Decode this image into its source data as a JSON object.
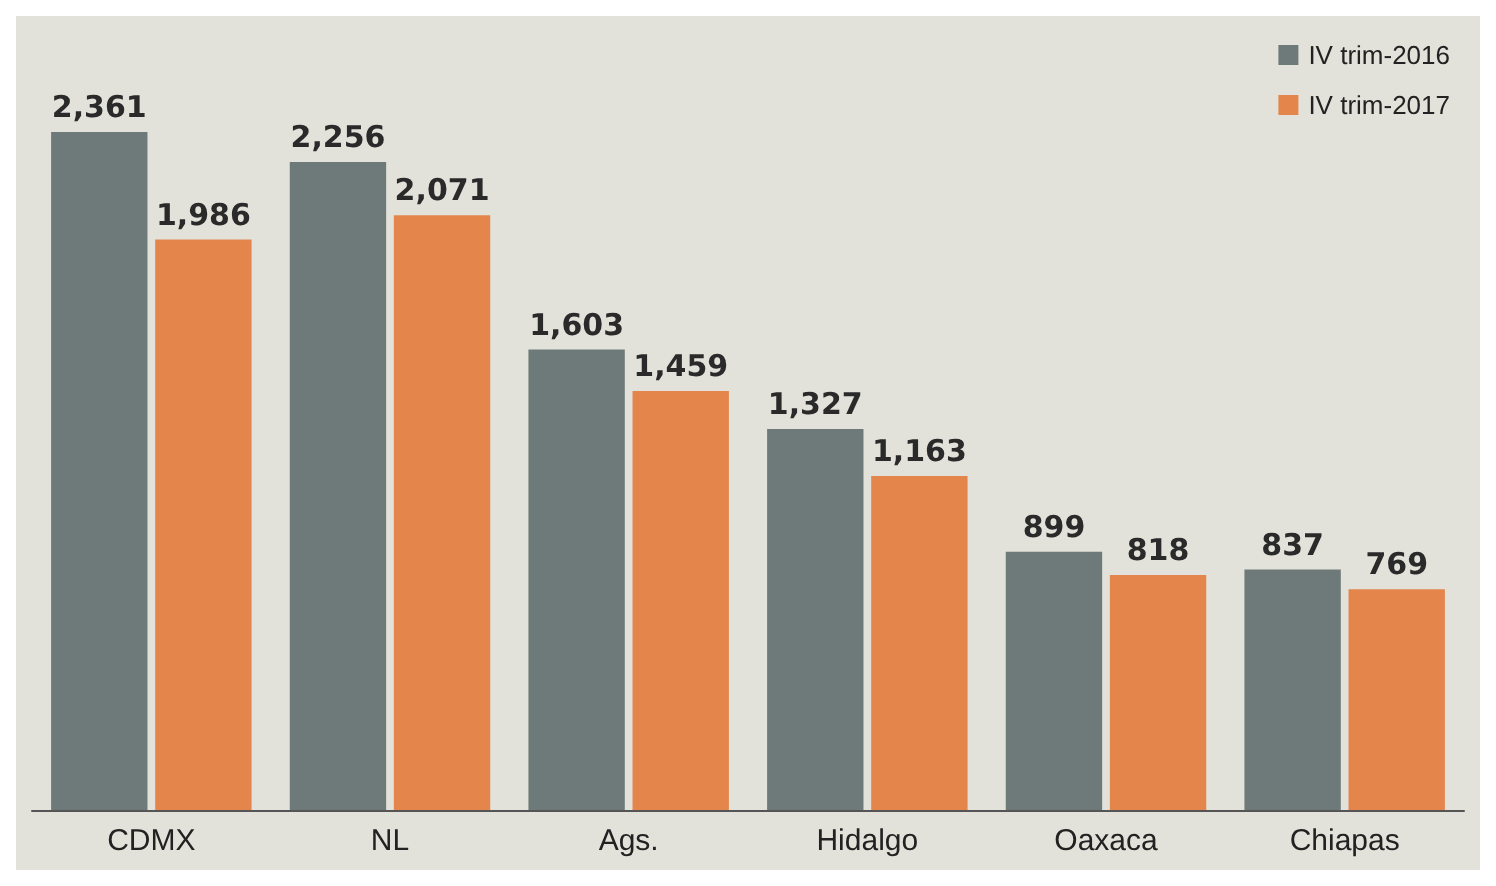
{
  "chart_data": {
    "type": "bar",
    "categories": [
      "CDMX",
      "NL",
      "Ags.",
      "Hidalgo",
      "Oaxaca",
      "Chiapas"
    ],
    "series": [
      {
        "name": "IV trim-2016",
        "color": "#6e7a7a",
        "values": [
          2361,
          2256,
          1603,
          1327,
          899,
          837
        ],
        "value_labels": [
          "2,361",
          "2,256",
          "1,603",
          "1,327",
          "899",
          "837"
        ]
      },
      {
        "name": "IV trim-2017",
        "color": "#e4864c",
        "values": [
          1986,
          2071,
          1459,
          1163,
          818,
          769
        ],
        "value_labels": [
          "1,986",
          "2,071",
          "1,459",
          "1,163",
          "818",
          "769"
        ]
      }
    ],
    "legend": "top right",
    "grid": false
  }
}
